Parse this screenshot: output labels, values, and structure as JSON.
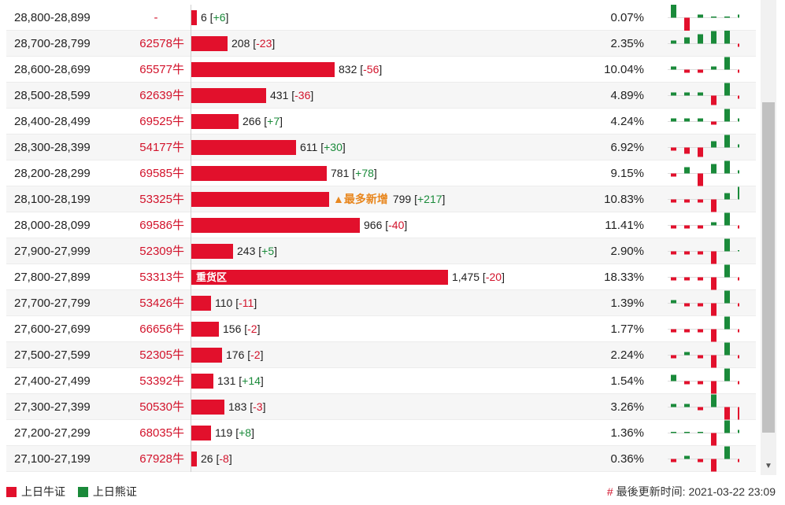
{
  "rows": [
    {
      "range": "28,800-28,899",
      "code": "-",
      "bar": 0.02,
      "count": "6",
      "chg": "+6",
      "pct": "0.07%",
      "spark": [
        7,
        -5,
        1,
        0,
        0,
        1
      ]
    },
    {
      "range": "28,700-28,799",
      "code": "62578牛",
      "bar": 0.13,
      "count": "208",
      "chg": "-23",
      "pct": "2.35%",
      "spark": [
        1,
        2,
        3,
        4,
        7,
        -1
      ]
    },
    {
      "range": "28,600-28,699",
      "code": "65577牛",
      "bar": 0.52,
      "count": "832",
      "chg": "-56",
      "pct": "10.04%",
      "spark": [
        1,
        -1,
        -1,
        1,
        4,
        -1
      ]
    },
    {
      "range": "28,500-28,599",
      "code": "62639牛",
      "bar": 0.27,
      "count": "431",
      "chg": "-36",
      "pct": "4.89%",
      "spark": [
        1,
        1,
        1,
        -3,
        4,
        -1
      ]
    },
    {
      "range": "28,400-28,499",
      "code": "69525牛",
      "bar": 0.17,
      "count": "266",
      "chg": "+7",
      "pct": "4.24%",
      "spark": [
        1,
        1,
        1,
        -1,
        4,
        1
      ]
    },
    {
      "range": "28,300-28,399",
      "code": "54177牛",
      "bar": 0.38,
      "count": "611",
      "chg": "+30",
      "pct": "6.92%",
      "spark": [
        -1,
        -2,
        -3,
        2,
        4,
        1
      ]
    },
    {
      "range": "28,200-28,299",
      "code": "69585牛",
      "bar": 0.49,
      "count": "781",
      "chg": "+78",
      "pct": "9.15%",
      "spark": [
        -1,
        2,
        -4,
        3,
        4,
        1
      ]
    },
    {
      "range": "28,100-28,199",
      "code": "53325牛",
      "bar": 0.5,
      "count": "799",
      "chg": "+217",
      "pct": "10.83%",
      "newmax": "▲最多新增",
      "spark": [
        -1,
        -1,
        -1,
        -4,
        2,
        4
      ]
    },
    {
      "range": "28,000-28,099",
      "code": "69586牛",
      "bar": 0.61,
      "count": "966",
      "chg": "-40",
      "pct": "11.41%",
      "spark": [
        -1,
        -1,
        -1,
        1,
        4,
        -1
      ]
    },
    {
      "range": "27,900-27,999",
      "code": "52309牛",
      "bar": 0.15,
      "count": "243",
      "chg": "+5",
      "pct": "2.90%",
      "spark": [
        -1,
        -1,
        -1,
        -4,
        4,
        0
      ]
    },
    {
      "range": "27,800-27,899",
      "code": "53313牛",
      "bar": 0.93,
      "count": "1,475",
      "chg": "-20",
      "pct": "18.33%",
      "tag": "重货区",
      "spark": [
        -1,
        -1,
        -1,
        -4,
        4,
        -1
      ]
    },
    {
      "range": "27,700-27,799",
      "code": "53426牛",
      "bar": 0.07,
      "count": "110",
      "chg": "-11",
      "pct": "1.39%",
      "spark": [
        1,
        -1,
        -1,
        -4,
        4,
        -1
      ]
    },
    {
      "range": "27,600-27,699",
      "code": "66656牛",
      "bar": 0.1,
      "count": "156",
      "chg": "-2",
      "pct": "1.77%",
      "spark": [
        -1,
        -1,
        -1,
        -4,
        4,
        -1
      ]
    },
    {
      "range": "27,500-27,599",
      "code": "52305牛",
      "bar": 0.11,
      "count": "176",
      "chg": "-2",
      "pct": "2.24%",
      "spark": [
        -1,
        1,
        -1,
        -4,
        4,
        -1
      ]
    },
    {
      "range": "27,400-27,499",
      "code": "53392牛",
      "bar": 0.08,
      "count": "131",
      "chg": "+14",
      "pct": "1.54%",
      "spark": [
        2,
        -1,
        -1,
        -4,
        4,
        -1
      ]
    },
    {
      "range": "27,300-27,399",
      "code": "50530牛",
      "bar": 0.12,
      "count": "183",
      "chg": "-3",
      "pct": "3.26%",
      "spark": [
        1,
        1,
        -1,
        4,
        -4,
        -4
      ]
    },
    {
      "range": "27,200-27,299",
      "code": "68035牛",
      "bar": 0.07,
      "count": "119",
      "chg": "+8",
      "pct": "1.36%",
      "spark": [
        0,
        0,
        0,
        -4,
        4,
        1
      ]
    },
    {
      "range": "27,100-27,199",
      "code": "67928牛",
      "bar": 0.02,
      "count": "26",
      "chg": "-8",
      "pct": "0.36%",
      "spark": [
        -1,
        1,
        -1,
        -4,
        4,
        -1
      ]
    }
  ],
  "legend": {
    "bull": "上日牛证",
    "bear": "上日熊证",
    "bull_color": "#e2102c",
    "bear_color": "#1a8a3a"
  },
  "footer": {
    "hash": "#",
    "label": "最後更新时间",
    "time": "2021-03-22 23:09"
  }
}
